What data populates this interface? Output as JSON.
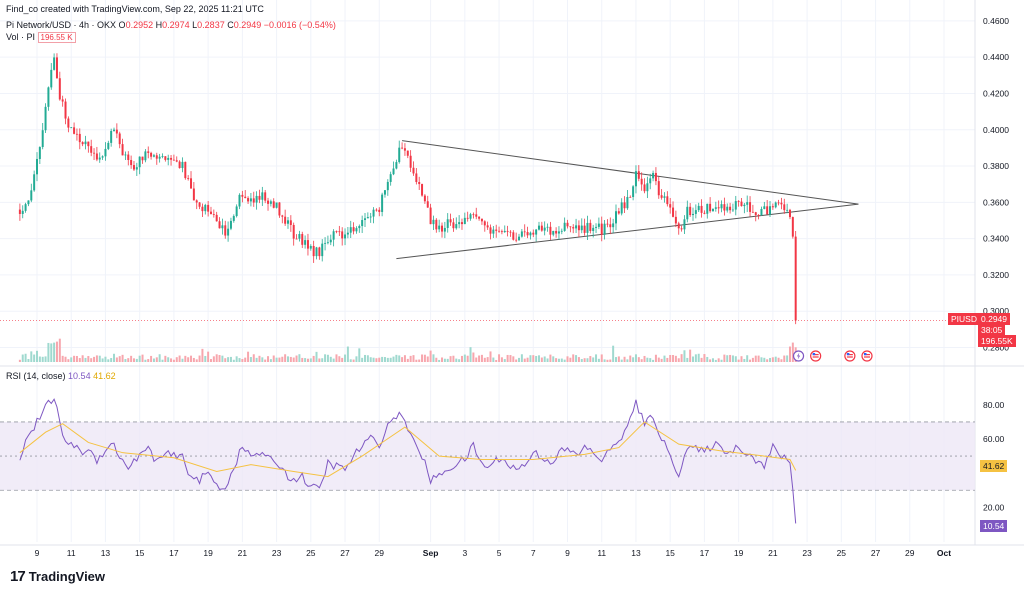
{
  "header": {
    "created_by": "Find_co created with TradingView.com, Sep 22, 2025 11:21 UTC",
    "symbol": "Pi Network/USD · 4h · OKX",
    "ohlc": {
      "o_label": "O",
      "o": "0.2952",
      "h_label": "H",
      "h": "0.2974",
      "l_label": "L",
      "l": "0.2837",
      "c_label": "C",
      "c": "0.2949",
      "change": "−0.0016 (−0.54%)"
    },
    "volume_label": "Vol · PI",
    "volume_value": "196.55 K"
  },
  "price_tags": {
    "symbol": "PIUSD",
    "price": "0.2949",
    "countdown": "38:05",
    "volume": "196.55K"
  },
  "rsi_header": {
    "label": "RSI (14, close)",
    "value": "10.54",
    "ma_value": "41.62"
  },
  "rsi_tags": {
    "ma": "41.62",
    "value": "10.54"
  },
  "brand": {
    "logo": "17",
    "name": "TradingView"
  },
  "colors": {
    "up": "#22ab94",
    "down": "#f23645",
    "rsi_line": "#7e57c2",
    "rsi_ma": "#f5c242",
    "rsi_band": "#ede7f6",
    "trendline": "#555555"
  },
  "icons": [
    "flash-icon",
    "us-flag-icon"
  ],
  "chart_data": [
    {
      "type": "candlestick",
      "title": "Pi Network/USD · 4h · OKX",
      "x_ticks": [
        "9",
        "11",
        "13",
        "15",
        "17",
        "19",
        "21",
        "23",
        "25",
        "27",
        "29",
        "Sep",
        "3",
        "5",
        "7",
        "9",
        "11",
        "13",
        "15",
        "17",
        "19",
        "21",
        "23",
        "25",
        "27",
        "29",
        "Oct"
      ],
      "y_ticks": [
        "0.4600",
        "0.4400",
        "0.4200",
        "0.4000",
        "0.3800",
        "0.3600",
        "0.3400",
        "0.3200",
        "0.3000",
        "0.2800"
      ],
      "ylim": [
        0.272,
        0.466
      ],
      "close_path": [
        {
          "d": "Aug 8 0:00",
          "v": 0.356
        },
        {
          "d": "Aug 8 12:00",
          "v": 0.362
        },
        {
          "d": "Aug 9 0:00",
          "v": 0.381
        },
        {
          "d": "Aug 9 12:00",
          "v": 0.412
        },
        {
          "d": "Aug 10 0:00",
          "v": 0.442
        },
        {
          "d": "Aug 10 8:00",
          "v": 0.418
        },
        {
          "d": "Aug 10 20:00",
          "v": 0.402
        },
        {
          "d": "Aug 11 8:00",
          "v": 0.396
        },
        {
          "d": "Aug 12 0:00",
          "v": 0.393
        },
        {
          "d": "Aug 12 12:00",
          "v": 0.381
        },
        {
          "d": "Aug 13 0:00",
          "v": 0.392
        },
        {
          "d": "Aug 13 12:00",
          "v": 0.401
        },
        {
          "d": "Aug 14 0:00",
          "v": 0.387
        },
        {
          "d": "Aug 14 12:00",
          "v": 0.378
        },
        {
          "d": "Aug 15 0:00",
          "v": 0.384
        },
        {
          "d": "Aug 15 12:00",
          "v": 0.387
        },
        {
          "d": "Aug 16 0:00",
          "v": 0.382
        },
        {
          "d": "Aug 16 12:00",
          "v": 0.386
        },
        {
          "d": "Aug 17 0:00",
          "v": 0.383
        },
        {
          "d": "Aug 17 12:00",
          "v": 0.381
        },
        {
          "d": "Aug 18 0:00",
          "v": 0.365
        },
        {
          "d": "Aug 18 12:00",
          "v": 0.355
        },
        {
          "d": "Aug 19 0:00",
          "v": 0.357
        },
        {
          "d": "Aug 19 12:00",
          "v": 0.35
        },
        {
          "d": "Aug 20 0:00",
          "v": 0.344
        },
        {
          "d": "Aug 20 12:00",
          "v": 0.352
        },
        {
          "d": "Aug 21 0:00",
          "v": 0.366
        },
        {
          "d": "Aug 21 12:00",
          "v": 0.36
        },
        {
          "d": "Aug 22 0:00",
          "v": 0.364
        },
        {
          "d": "Aug 22 12:00",
          "v": 0.362
        },
        {
          "d": "Aug 23 0:00",
          "v": 0.358
        },
        {
          "d": "Aug 23 12:00",
          "v": 0.35
        },
        {
          "d": "Aug 24 0:00",
          "v": 0.342
        },
        {
          "d": "Aug 24 12:00",
          "v": 0.339
        },
        {
          "d": "Aug 25 0:00",
          "v": 0.334
        },
        {
          "d": "Aug 25 12:00",
          "v": 0.332
        },
        {
          "d": "Aug 26 0:00",
          "v": 0.34
        },
        {
          "d": "Aug 26 12:00",
          "v": 0.343
        },
        {
          "d": "Aug 27 0:00",
          "v": 0.341
        },
        {
          "d": "Aug 27 12:00",
          "v": 0.345
        },
        {
          "d": "Aug 28 0:00",
          "v": 0.35
        },
        {
          "d": "Aug 28 12:00",
          "v": 0.352
        },
        {
          "d": "Aug 29 0:00",
          "v": 0.357
        },
        {
          "d": "Aug 29 12:00",
          "v": 0.374
        },
        {
          "d": "Aug 30 0:00",
          "v": 0.384
        },
        {
          "d": "Aug 30 8:00",
          "v": 0.392
        },
        {
          "d": "Aug 30 20:00",
          "v": 0.382
        },
        {
          "d": "Aug 31 8:00",
          "v": 0.369
        },
        {
          "d": "Sep 1 0:00",
          "v": 0.35
        },
        {
          "d": "Sep 1 12:00",
          "v": 0.346
        },
        {
          "d": "Sep 2 0:00",
          "v": 0.348
        },
        {
          "d": "Sep 2 12:00",
          "v": 0.349
        },
        {
          "d": "Sep 3 0:00",
          "v": 0.35
        },
        {
          "d": "Sep 3 12:00",
          "v": 0.356
        },
        {
          "d": "Sep 4 0:00",
          "v": 0.349
        },
        {
          "d": "Sep 4 12:00",
          "v": 0.345
        },
        {
          "d": "Sep 5 0:00",
          "v": 0.346
        },
        {
          "d": "Sep 5 12:00",
          "v": 0.344
        },
        {
          "d": "Sep 6 0:00",
          "v": 0.341
        },
        {
          "d": "Sep 6 12:00",
          "v": 0.342
        },
        {
          "d": "Sep 7 0:00",
          "v": 0.345
        },
        {
          "d": "Sep 7 12:00",
          "v": 0.346
        },
        {
          "d": "Sep 8 0:00",
          "v": 0.344
        },
        {
          "d": "Sep 8 12:00",
          "v": 0.345
        },
        {
          "d": "Sep 9 0:00",
          "v": 0.347
        },
        {
          "d": "Sep 9 12:00",
          "v": 0.345
        },
        {
          "d": "Sep 10 0:00",
          "v": 0.346
        },
        {
          "d": "Sep 10 12:00",
          "v": 0.346
        },
        {
          "d": "Sep 11 0:00",
          "v": 0.345
        },
        {
          "d": "Sep 11 12:00",
          "v": 0.347
        },
        {
          "d": "Sep 12 0:00",
          "v": 0.356
        },
        {
          "d": "Sep 12 12:00",
          "v": 0.361
        },
        {
          "d": "Sep 13 0:00",
          "v": 0.375
        },
        {
          "d": "Sep 13 12:00",
          "v": 0.369
        },
        {
          "d": "Sep 14 0:00",
          "v": 0.374
        },
        {
          "d": "Sep 14 12:00",
          "v": 0.362
        },
        {
          "d": "Sep 15 0:00",
          "v": 0.357
        },
        {
          "d": "Sep 15 12:00",
          "v": 0.344
        },
        {
          "d": "Sep 16 0:00",
          "v": 0.355
        },
        {
          "d": "Sep 16 12:00",
          "v": 0.357
        },
        {
          "d": "Sep 17 0:00",
          "v": 0.356
        },
        {
          "d": "Sep 17 12:00",
          "v": 0.357
        },
        {
          "d": "Sep 18 0:00",
          "v": 0.358
        },
        {
          "d": "Sep 18 12:00",
          "v": 0.356
        },
        {
          "d": "Sep 19 0:00",
          "v": 0.361
        },
        {
          "d": "Sep 19 12:00",
          "v": 0.358
        },
        {
          "d": "Sep 20 0:00",
          "v": 0.356
        },
        {
          "d": "Sep 20 12:00",
          "v": 0.355
        },
        {
          "d": "Sep 21 0:00",
          "v": 0.358
        },
        {
          "d": "Sep 21 12:00",
          "v": 0.357
        },
        {
          "d": "Sep 22 0:00",
          "v": 0.354
        },
        {
          "d": "Sep 22 4:00",
          "v": 0.34
        },
        {
          "d": "Sep 22 8:00",
          "v": 0.295
        }
      ],
      "trendlines": [
        {
          "from": {
            "d": "Aug 30 8:00",
            "v": 0.394
          },
          "to": {
            "d": "Sep 26 0:00",
            "v": 0.359
          }
        },
        {
          "from": {
            "d": "Aug 30 0:00",
            "v": 0.329
          },
          "to": {
            "d": "Sep 26 0:00",
            "v": 0.359
          }
        }
      ],
      "current_price": 0.2949,
      "volume_max": "Aug 10 0:00"
    },
    {
      "type": "line",
      "title": "RSI (14, close)",
      "y_ticks": [
        "80.00",
        "60.00",
        "20.00"
      ],
      "ylim": [
        2,
        94
      ],
      "band": [
        30,
        70
      ],
      "midline": 50,
      "rsi": [
        {
          "d": "Aug 8 0:00",
          "v": 50
        },
        {
          "d": "Aug 8 12:00",
          "v": 62
        },
        {
          "d": "Aug 9 0:00",
          "v": 70
        },
        {
          "d": "Aug 9 12:00",
          "v": 78
        },
        {
          "d": "Aug 10 0:00",
          "v": 85
        },
        {
          "d": "Aug 10 12:00",
          "v": 60
        },
        {
          "d": "Aug 11 0:00",
          "v": 58
        },
        {
          "d": "Aug 11 12:00",
          "v": 52
        },
        {
          "d": "Aug 12 0:00",
          "v": 54
        },
        {
          "d": "Aug 12 12:00",
          "v": 48
        },
        {
          "d": "Aug 13 0:00",
          "v": 54
        },
        {
          "d": "Aug 13 12:00",
          "v": 57
        },
        {
          "d": "Aug 14 0:00",
          "v": 46
        },
        {
          "d": "Aug 14 12:00",
          "v": 44
        },
        {
          "d": "Aug 15 0:00",
          "v": 51
        },
        {
          "d": "Aug 15 12:00",
          "v": 54
        },
        {
          "d": "Aug 16 0:00",
          "v": 47
        },
        {
          "d": "Aug 16 12:00",
          "v": 51
        },
        {
          "d": "Aug 17 0:00",
          "v": 50
        },
        {
          "d": "Aug 17 12:00",
          "v": 49
        },
        {
          "d": "Aug 18 0:00",
          "v": 38
        },
        {
          "d": "Aug 18 12:00",
          "v": 36
        },
        {
          "d": "Aug 19 0:00",
          "v": 40
        },
        {
          "d": "Aug 19 12:00",
          "v": 33
        },
        {
          "d": "Aug 20 0:00",
          "v": 31
        },
        {
          "d": "Aug 20 12:00",
          "v": 44
        },
        {
          "d": "Aug 21 0:00",
          "v": 55
        },
        {
          "d": "Aug 21 12:00",
          "v": 50
        },
        {
          "d": "Aug 22 0:00",
          "v": 52
        },
        {
          "d": "Aug 22 12:00",
          "v": 48
        },
        {
          "d": "Aug 23 0:00",
          "v": 47
        },
        {
          "d": "Aug 23 12:00",
          "v": 40
        },
        {
          "d": "Aug 24 0:00",
          "v": 36
        },
        {
          "d": "Aug 24 12:00",
          "v": 38
        },
        {
          "d": "Aug 25 0:00",
          "v": 32
        },
        {
          "d": "Aug 25 12:00",
          "v": 30
        },
        {
          "d": "Aug 26 0:00",
          "v": 46
        },
        {
          "d": "Aug 26 12:00",
          "v": 44
        },
        {
          "d": "Aug 27 0:00",
          "v": 42
        },
        {
          "d": "Aug 27 12:00",
          "v": 50
        },
        {
          "d": "Aug 28 0:00",
          "v": 56
        },
        {
          "d": "Aug 28 12:00",
          "v": 60
        },
        {
          "d": "Aug 29 0:00",
          "v": 57
        },
        {
          "d": "Aug 29 12:00",
          "v": 68
        },
        {
          "d": "Aug 30 0:00",
          "v": 74
        },
        {
          "d": "Aug 30 12:00",
          "v": 72
        },
        {
          "d": "Aug 31 0:00",
          "v": 58
        },
        {
          "d": "Aug 31 12:00",
          "v": 50
        },
        {
          "d": "Sep 1 0:00",
          "v": 36
        },
        {
          "d": "Sep 1 12:00",
          "v": 38
        },
        {
          "d": "Sep 2 0:00",
          "v": 43
        },
        {
          "d": "Sep 2 12:00",
          "v": 45
        },
        {
          "d": "Sep 3 0:00",
          "v": 48
        },
        {
          "d": "Sep 3 12:00",
          "v": 56
        },
        {
          "d": "Sep 4 0:00",
          "v": 45
        },
        {
          "d": "Sep 4 12:00",
          "v": 44
        },
        {
          "d": "Sep 5 0:00",
          "v": 49
        },
        {
          "d": "Sep 5 12:00",
          "v": 46
        },
        {
          "d": "Sep 6 0:00",
          "v": 42
        },
        {
          "d": "Sep 6 12:00",
          "v": 45
        },
        {
          "d": "Sep 7 0:00",
          "v": 52
        },
        {
          "d": "Sep 7 12:00",
          "v": 50
        },
        {
          "d": "Sep 8 0:00",
          "v": 46
        },
        {
          "d": "Sep 8 12:00",
          "v": 52
        },
        {
          "d": "Sep 9 0:00",
          "v": 54
        },
        {
          "d": "Sep 9 12:00",
          "v": 50
        },
        {
          "d": "Sep 10 0:00",
          "v": 55
        },
        {
          "d": "Sep 10 12:00",
          "v": 52
        },
        {
          "d": "Sep 11 0:00",
          "v": 48
        },
        {
          "d": "Sep 11 12:00",
          "v": 53
        },
        {
          "d": "Sep 12 0:00",
          "v": 60
        },
        {
          "d": "Sep 12 12:00",
          "v": 66
        },
        {
          "d": "Sep 13 0:00",
          "v": 82
        },
        {
          "d": "Sep 13 12:00",
          "v": 68
        },
        {
          "d": "Sep 14 0:00",
          "v": 74
        },
        {
          "d": "Sep 14 12:00",
          "v": 60
        },
        {
          "d": "Sep 15 0:00",
          "v": 50
        },
        {
          "d": "Sep 15 12:00",
          "v": 40
        },
        {
          "d": "Sep 16 0:00",
          "v": 55
        },
        {
          "d": "Sep 16 12:00",
          "v": 54
        },
        {
          "d": "Sep 17 0:00",
          "v": 52
        },
        {
          "d": "Sep 17 12:00",
          "v": 57
        },
        {
          "d": "Sep 18 0:00",
          "v": 55
        },
        {
          "d": "Sep 18 12:00",
          "v": 52
        },
        {
          "d": "Sep 19 0:00",
          "v": 56
        },
        {
          "d": "Sep 19 12:00",
          "v": 52
        },
        {
          "d": "Sep 20 0:00",
          "v": 48
        },
        {
          "d": "Sep 20 12:00",
          "v": 44
        },
        {
          "d": "Sep 21 0:00",
          "v": 55
        },
        {
          "d": "Sep 21 12:00",
          "v": 50
        },
        {
          "d": "Sep 22 0:00",
          "v": 46
        },
        {
          "d": "Sep 22 4:00",
          "v": 32
        },
        {
          "d": "Sep 22 8:00",
          "v": 10.54
        }
      ],
      "rsi_ma_points": [
        {
          "d": "Aug 8 0:00",
          "v": 52
        },
        {
          "d": "Aug 9 12:00",
          "v": 64
        },
        {
          "d": "Aug 10 12:00",
          "v": 69
        },
        {
          "d": "Aug 12 0:00",
          "v": 58
        },
        {
          "d": "Aug 14 0:00",
          "v": 52
        },
        {
          "d": "Aug 17 0:00",
          "v": 49
        },
        {
          "d": "Aug 19 12:00",
          "v": 41
        },
        {
          "d": "Aug 21 12:00",
          "v": 45
        },
        {
          "d": "Aug 24 0:00",
          "v": 41
        },
        {
          "d": "Aug 26 0:00",
          "v": 38
        },
        {
          "d": "Aug 28 0:00",
          "v": 50
        },
        {
          "d": "Aug 30 12:00",
          "v": 67
        },
        {
          "d": "Sep 1 12:00",
          "v": 50
        },
        {
          "d": "Sep 4 0:00",
          "v": 48
        },
        {
          "d": "Sep 7 0:00",
          "v": 48
        },
        {
          "d": "Sep 10 0:00",
          "v": 51
        },
        {
          "d": "Sep 12 0:00",
          "v": 55
        },
        {
          "d": "Sep 13 12:00",
          "v": 70
        },
        {
          "d": "Sep 15 12:00",
          "v": 57
        },
        {
          "d": "Sep 18 0:00",
          "v": 53
        },
        {
          "d": "Sep 20 12:00",
          "v": 50
        },
        {
          "d": "Sep 22 0:00",
          "v": 48
        },
        {
          "d": "Sep 22 8:00",
          "v": 41.62
        }
      ]
    }
  ]
}
